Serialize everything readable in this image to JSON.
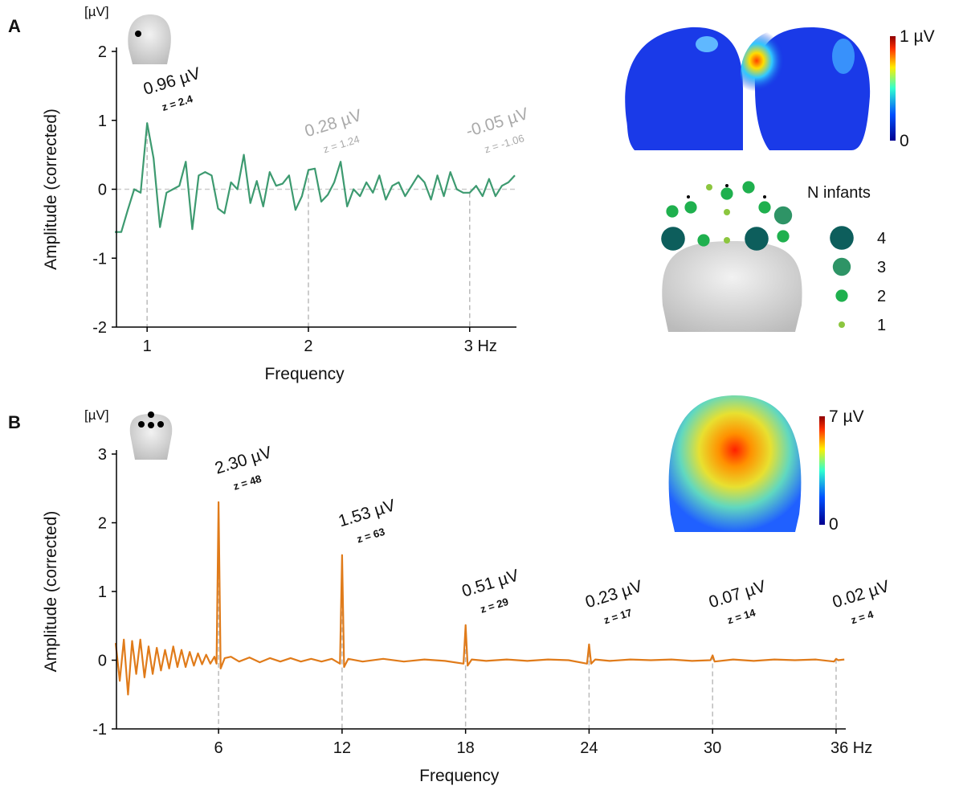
{
  "chart_data": [
    {
      "type": "line",
      "panel": "A",
      "unit": "[µV]",
      "ylabel": "Amplitude (corrected)",
      "xlabel": "Frequency",
      "xlim": [
        0.81,
        3.29
      ],
      "ylim": [
        -2,
        2
      ],
      "yticks": [
        -2,
        -1,
        0,
        1,
        2
      ],
      "xticks": [
        1,
        2,
        {
          "value": 3,
          "label": "3 Hz"
        }
      ],
      "zero_line": true,
      "series": [
        {
          "color": "#3d9a70",
          "x": [
            0.8,
            0.84,
            0.88,
            0.92,
            0.96,
            1.0,
            1.04,
            1.08,
            1.12,
            1.16,
            1.2,
            1.24,
            1.28,
            1.32,
            1.36,
            1.4,
            1.44,
            1.48,
            1.52,
            1.56,
            1.6,
            1.64,
            1.68,
            1.72,
            1.76,
            1.8,
            1.84,
            1.88,
            1.92,
            1.96,
            2.0,
            2.04,
            2.08,
            2.12,
            2.16,
            2.2,
            2.24,
            2.28,
            2.32,
            2.36,
            2.4,
            2.44,
            2.48,
            2.52,
            2.56,
            2.6,
            2.64,
            2.68,
            2.72,
            2.76,
            2.8,
            2.84,
            2.88,
            2.92,
            2.96,
            3.0,
            3.04,
            3.08,
            3.12,
            3.16,
            3.2,
            3.24,
            3.28
          ],
          "values": [
            -0.62,
            -0.62,
            -0.3,
            0,
            -0.05,
            0.96,
            0.45,
            -0.55,
            -0.05,
            0,
            0.05,
            0.4,
            -0.58,
            0.2,
            0.25,
            0.2,
            -0.28,
            -0.35,
            0.1,
            0,
            0.5,
            -0.2,
            0.12,
            -0.25,
            0.25,
            0.05,
            0.08,
            0.2,
            -0.3,
            -0.1,
            0.28,
            0.3,
            -0.18,
            -0.08,
            0.1,
            0.4,
            -0.25,
            0,
            -0.1,
            0.1,
            -0.05,
            0.2,
            -0.15,
            0.05,
            0.1,
            -0.1,
            0.05,
            0.2,
            0.1,
            -0.15,
            0.2,
            -0.1,
            0.25,
            0,
            -0.05,
            -0.05,
            0.05,
            -0.1,
            0.15,
            -0.1,
            0.05,
            0.1,
            0.2
          ]
        }
      ],
      "annotations": [
        {
          "x": 1,
          "label": "0.96 µV",
          "z": "z = 2.4",
          "color": "#111111"
        },
        {
          "x": 2,
          "label": "0.28 µV",
          "z": "z = 1.24",
          "color": "#aaaaaa"
        },
        {
          "x": 3,
          "label": "-0.05 µV",
          "z": "z = -1.06",
          "color": "#aaaaaa"
        }
      ],
      "colorbar_labels": [
        "1 µV",
        "0"
      ]
    },
    {
      "type": "line",
      "panel": "B",
      "unit": "[µV]",
      "ylabel": "Amplitude (corrected)",
      "xlabel": "Frequency",
      "xlim": [
        1.04,
        36.47
      ],
      "ylim": [
        -1,
        3
      ],
      "yticks": [
        -1,
        0,
        1,
        2,
        3
      ],
      "xticks": [
        6,
        12,
        18,
        24,
        30,
        {
          "value": 36,
          "label": "36 Hz"
        }
      ],
      "zero_line": false,
      "series": [
        {
          "color": "#e07b1a",
          "x": [
            1.0,
            1.2,
            1.4,
            1.6,
            1.8,
            2.0,
            2.2,
            2.4,
            2.6,
            2.8,
            3.0,
            3.2,
            3.4,
            3.6,
            3.8,
            4.0,
            4.2,
            4.4,
            4.6,
            4.8,
            5.0,
            5.2,
            5.4,
            5.6,
            5.8,
            5.9,
            6.0,
            6.1,
            6.3,
            6.6,
            7,
            7.5,
            8,
            8.5,
            9,
            9.5,
            10,
            10.5,
            11,
            11.5,
            11.9,
            12.0,
            12.1,
            12.3,
            13,
            14,
            15,
            16,
            17,
            17.9,
            18.0,
            18.1,
            18.3,
            19,
            20,
            21,
            22,
            23,
            23.9,
            24.0,
            24.1,
            24.3,
            25,
            26,
            27,
            28,
            29,
            29.9,
            30.0,
            30.1,
            31,
            32,
            33,
            34,
            35,
            35.9,
            36.0,
            36.1,
            36.4
          ],
          "values": [
            0.25,
            -0.3,
            0.3,
            -0.5,
            0.28,
            -0.2,
            0.3,
            -0.25,
            0.2,
            -0.2,
            0.18,
            -0.15,
            0.15,
            -0.12,
            0.2,
            -0.1,
            0.15,
            -0.1,
            0.12,
            -0.08,
            0.1,
            -0.06,
            0.08,
            -0.05,
            0.05,
            -0.05,
            2.3,
            -0.12,
            0.03,
            0.05,
            -0.02,
            0.04,
            -0.03,
            0.03,
            -0.02,
            0.03,
            -0.02,
            0.02,
            -0.02,
            0.02,
            -0.05,
            1.53,
            -0.1,
            0.02,
            -0.02,
            0.02,
            -0.02,
            0.01,
            -0.01,
            -0.05,
            0.51,
            -0.08,
            0.01,
            -0.01,
            0.01,
            -0.01,
            0.01,
            0,
            -0.05,
            0.23,
            -0.05,
            0.01,
            -0.01,
            0.01,
            0,
            0.01,
            -0.01,
            0,
            0.07,
            -0.02,
            0.01,
            -0.01,
            0.01,
            0,
            0.01,
            -0.02,
            0.02,
            0,
            0.01
          ]
        }
      ],
      "annotations": [
        {
          "x": 6,
          "label": "2.30 µV",
          "z": "z = 48",
          "color": "#111111"
        },
        {
          "x": 12,
          "label": "1.53 µV",
          "z": "z = 63",
          "color": "#111111"
        },
        {
          "x": 18,
          "label": "0.51 µV",
          "z": "z = 29",
          "color": "#111111"
        },
        {
          "x": 24,
          "label": "0.23 µV",
          "z": "z = 17",
          "color": "#111111"
        },
        {
          "x": 30,
          "label": "0.07 µV",
          "z": "z = 14",
          "color": "#111111"
        },
        {
          "x": 36,
          "label": "0.02 µV",
          "z": "z = 4",
          "color": "#111111"
        }
      ],
      "colorbar_labels": [
        "7 µV",
        "0"
      ]
    }
  ],
  "electrode_map": {
    "legend_title": "N infants",
    "legend": [
      4,
      3,
      2,
      1
    ],
    "colors": [
      "#0d5e5c",
      "#2e9466",
      "#1fb04e",
      "#8cc63f"
    ],
    "electrodes": [
      4,
      4,
      3,
      2,
      2,
      2,
      2,
      2,
      2,
      2,
      1,
      1,
      1
    ]
  }
}
